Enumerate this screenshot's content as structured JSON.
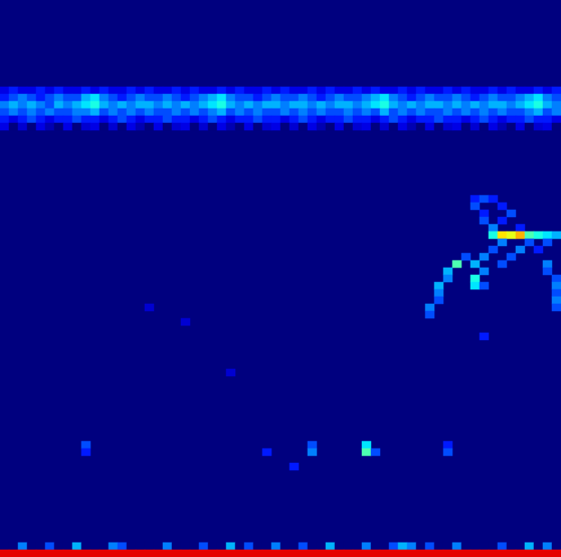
{
  "chart_data": {
    "type": "heatmap",
    "tick_labels": false,
    "grid": false,
    "grid_size": [
      62,
      77
    ],
    "color_range": [
      0,
      1
    ],
    "rows": [
      {
        "y": 64,
        "values": [
          0.1,
          0.15,
          0.1,
          0.1,
          0.15,
          0.1,
          0.15,
          0.1,
          0.1,
          0.15,
          0.1,
          0.15,
          0.1,
          0.1,
          0.15,
          0.1,
          0.15,
          0.1,
          0.1,
          0.15,
          0.1,
          0.15,
          0.1,
          0.1,
          0.15,
          0.1,
          0.15,
          0.1,
          0.1,
          0.15,
          0.1,
          0.15,
          0.1,
          0.1,
          0.15,
          0.1,
          0.15,
          0.1,
          0.1,
          0.15,
          0.1,
          0.15,
          0.1,
          0.1,
          0.15,
          0.1,
          0.15,
          0.1,
          0.1,
          0.15,
          0.1,
          0.15,
          0.1,
          0.1,
          0.15,
          0.1,
          0.15,
          0.1,
          0.1,
          0.15,
          0.1,
          0.15
        ]
      },
      {
        "y": 63,
        "values": [
          0.15,
          0.2,
          0.25,
          0.2,
          0.15,
          0.2,
          0.25,
          0.2,
          0.2,
          0.3,
          0.35,
          0.25,
          0.2,
          0.15,
          0.2,
          0.25,
          0.2,
          0.2,
          0.25,
          0.2,
          0.15,
          0.2,
          0.25,
          0.3,
          0.35,
          0.25,
          0.2,
          0.2,
          0.15,
          0.2,
          0.25,
          0.2,
          0.2,
          0.25,
          0.2,
          0.15,
          0.2,
          0.25,
          0.2,
          0.2,
          0.25,
          0.3,
          0.35,
          0.25,
          0.2,
          0.15,
          0.2,
          0.25,
          0.2,
          0.2,
          0.25,
          0.2,
          0.15,
          0.2,
          0.25,
          0.2,
          0.2,
          0.25,
          0.3,
          0.35,
          0.25,
          0.2
        ]
      },
      {
        "y": 62,
        "values": [
          0.25,
          0.3,
          0.25,
          0.3,
          0.25,
          0.2,
          0.3,
          0.25,
          0.3,
          0.35,
          0.4,
          0.3,
          0.25,
          0.3,
          0.25,
          0.3,
          0.3,
          0.25,
          0.3,
          0.25,
          0.3,
          0.25,
          0.3,
          0.35,
          0.4,
          0.3,
          0.25,
          0.3,
          0.25,
          0.3,
          0.3,
          0.25,
          0.3,
          0.3,
          0.25,
          0.3,
          0.25,
          0.3,
          0.3,
          0.25,
          0.3,
          0.35,
          0.4,
          0.3,
          0.25,
          0.3,
          0.25,
          0.3,
          0.3,
          0.25,
          0.3,
          0.25,
          0.3,
          0.25,
          0.3,
          0.3,
          0.25,
          0.3,
          0.35,
          0.4,
          0.3,
          0.25
        ]
      },
      {
        "y": 61,
        "values": [
          0.2,
          0.25,
          0.2,
          0.25,
          0.2,
          0.25,
          0.2,
          0.2,
          0.25,
          0.25,
          0.3,
          0.2,
          0.25,
          0.2,
          0.25,
          0.2,
          0.25,
          0.2,
          0.2,
          0.25,
          0.2,
          0.25,
          0.2,
          0.25,
          0.3,
          0.2,
          0.25,
          0.2,
          0.25,
          0.2,
          0.2,
          0.25,
          0.2,
          0.25,
          0.2,
          0.25,
          0.2,
          0.2,
          0.25,
          0.2,
          0.25,
          0.2,
          0.3,
          0.2,
          0.25,
          0.2,
          0.25,
          0.2,
          0.2,
          0.25,
          0.2,
          0.25,
          0.2,
          0.25,
          0.2,
          0.25,
          0.2,
          0.2,
          0.25,
          0.3,
          0.2,
          0.25
        ]
      },
      {
        "y": 60,
        "values": [
          0.15,
          0.1,
          0.15,
          0.2,
          0.15,
          0.1,
          0.15,
          0.15,
          0.2,
          0.15,
          0.15,
          0.1,
          0.15,
          0.2,
          0.15,
          0.1,
          0.15,
          0.15,
          0.2,
          0.15,
          0.15,
          0.1,
          0.15,
          0.2,
          0.15,
          0.1,
          0.15,
          0.15,
          0.2,
          0.15,
          0.15,
          0.1,
          0.15,
          0.2,
          0.15,
          0.1,
          0.15,
          0.15,
          0.2,
          0.15,
          0.15,
          0.1,
          0.15,
          0.2,
          0.15,
          0.1,
          0.15,
          0.15,
          0.2,
          0.15,
          0.15,
          0.1,
          0.15,
          0.2,
          0.15,
          0.1,
          0.15,
          0.15,
          0.2,
          0.15,
          0.15,
          0.1
        ]
      },
      {
        "y": 59,
        "values": [
          0.1,
          0,
          0.08,
          0,
          0.1,
          0.05,
          0,
          0.1,
          0,
          0.08,
          0.1,
          0,
          0.08,
          0,
          0.1,
          0.05,
          0,
          0.1,
          0,
          0.08,
          0.1,
          0,
          0.08,
          0,
          0.1,
          0.05,
          0,
          0.1,
          0,
          0.08,
          0.1,
          0,
          0.08,
          0,
          0.1,
          0.05,
          0,
          0.1,
          0,
          0.08,
          0.1,
          0,
          0.08,
          0,
          0.1,
          0.05,
          0,
          0.1,
          0,
          0.08,
          0.1,
          0,
          0.08,
          0,
          0.1,
          0.05,
          0,
          0.1,
          0,
          0.08,
          0.1,
          0
        ]
      },
      {
        "y": 1,
        "values": [
          0,
          0,
          0.25,
          0,
          0,
          0.2,
          0,
          0,
          0.3,
          0,
          0,
          0,
          0.25,
          0.2,
          0,
          0,
          0,
          0,
          0.25,
          0,
          0,
          0,
          0.2,
          0,
          0,
          0.3,
          0,
          0.2,
          0,
          0,
          0.25,
          0,
          0,
          0.2,
          0,
          0,
          0.3,
          0,
          0,
          0,
          0.25,
          0,
          0,
          0.2,
          0.3,
          0.25,
          0,
          0.2,
          0,
          0,
          0.25,
          0,
          0,
          0,
          0,
          0.2,
          0,
          0,
          0.3,
          0,
          0.25,
          0
        ]
      },
      {
        "y": 0,
        "values": [
          0.9,
          0.9,
          0.9,
          0.9,
          0.9,
          0.9,
          0.9,
          0.9,
          0.9,
          0.9,
          0.9,
          0.9,
          0.9,
          0.9,
          0.9,
          0.9,
          0.9,
          0.9,
          0.9,
          0.9,
          0.9,
          0.9,
          0.9,
          0.9,
          0.9,
          0.9,
          0.9,
          0.9,
          0.9,
          0.9,
          0.9,
          0.9,
          0.9,
          0.9,
          0.9,
          0.9,
          0.9,
          0.9,
          0.9,
          0.9,
          0.9,
          0.9,
          0.9,
          0.9,
          0.9,
          0.9,
          0.9,
          0.9,
          0.9,
          0.9,
          0.9,
          0.9,
          0.9,
          0.9,
          0.9,
          0.9,
          0.9,
          0.9,
          0.9,
          0.9,
          0.9,
          0.9
        ]
      }
    ],
    "cells": [
      [
        52,
        49,
        0.15
      ],
      [
        53,
        49,
        0.2
      ],
      [
        54,
        49,
        0.15
      ],
      [
        52,
        48,
        0.2
      ],
      [
        55,
        48,
        0.15
      ],
      [
        53,
        47,
        0.15
      ],
      [
        56,
        47,
        0.2
      ],
      [
        53,
        46,
        0.2
      ],
      [
        55,
        46,
        0.15
      ],
      [
        54,
        45,
        0.25
      ],
      [
        57,
        45,
        0.15
      ],
      [
        54,
        44,
        0.4
      ],
      [
        55,
        44,
        0.65
      ],
      [
        56,
        44,
        0.6
      ],
      [
        57,
        44,
        0.7
      ],
      [
        58,
        44,
        0.45
      ],
      [
        59,
        44,
        0.4
      ],
      [
        60,
        44,
        0.35
      ],
      [
        61,
        44,
        0.3
      ],
      [
        55,
        43,
        0.25
      ],
      [
        58,
        43,
        0.2
      ],
      [
        60,
        43,
        0.2
      ],
      [
        54,
        42,
        0.2
      ],
      [
        57,
        42,
        0.25
      ],
      [
        59,
        42,
        0.15
      ],
      [
        51,
        41,
        0.2
      ],
      [
        53,
        41,
        0.25
      ],
      [
        56,
        41,
        0.2
      ],
      [
        50,
        40,
        0.45
      ],
      [
        52,
        40,
        0.3
      ],
      [
        55,
        40,
        0.2
      ],
      [
        60,
        40,
        0.25
      ],
      [
        49,
        39,
        0.3
      ],
      [
        53,
        39,
        0.25
      ],
      [
        60,
        39,
        0.2
      ],
      [
        49,
        38,
        0.25
      ],
      [
        52,
        38,
        0.4
      ],
      [
        61,
        38,
        0.2
      ],
      [
        48,
        37,
        0.3
      ],
      [
        52,
        37,
        0.35
      ],
      [
        53,
        37,
        0.2
      ],
      [
        61,
        37,
        0.25
      ],
      [
        48,
        36,
        0.25
      ],
      [
        61,
        36,
        0.2
      ],
      [
        48,
        35,
        0.2
      ],
      [
        61,
        35,
        0.25
      ],
      [
        47,
        34,
        0.25
      ],
      [
        61,
        34,
        0.2
      ],
      [
        47,
        33,
        0.2
      ],
      [
        53,
        30,
        0.15
      ],
      [
        9,
        15,
        0.2
      ],
      [
        9,
        14,
        0.15
      ],
      [
        34,
        15,
        0.2
      ],
      [
        34,
        14,
        0.25
      ],
      [
        40,
        15,
        0.35
      ],
      [
        40,
        14,
        0.45
      ],
      [
        41,
        14,
        0.2
      ],
      [
        49,
        15,
        0.15
      ],
      [
        49,
        14,
        0.2
      ],
      [
        29,
        14,
        0.15
      ],
      [
        32,
        12,
        0.15
      ],
      [
        16,
        34,
        0.08
      ],
      [
        20,
        32,
        0.08
      ],
      [
        25,
        25,
        0.08
      ]
    ]
  }
}
